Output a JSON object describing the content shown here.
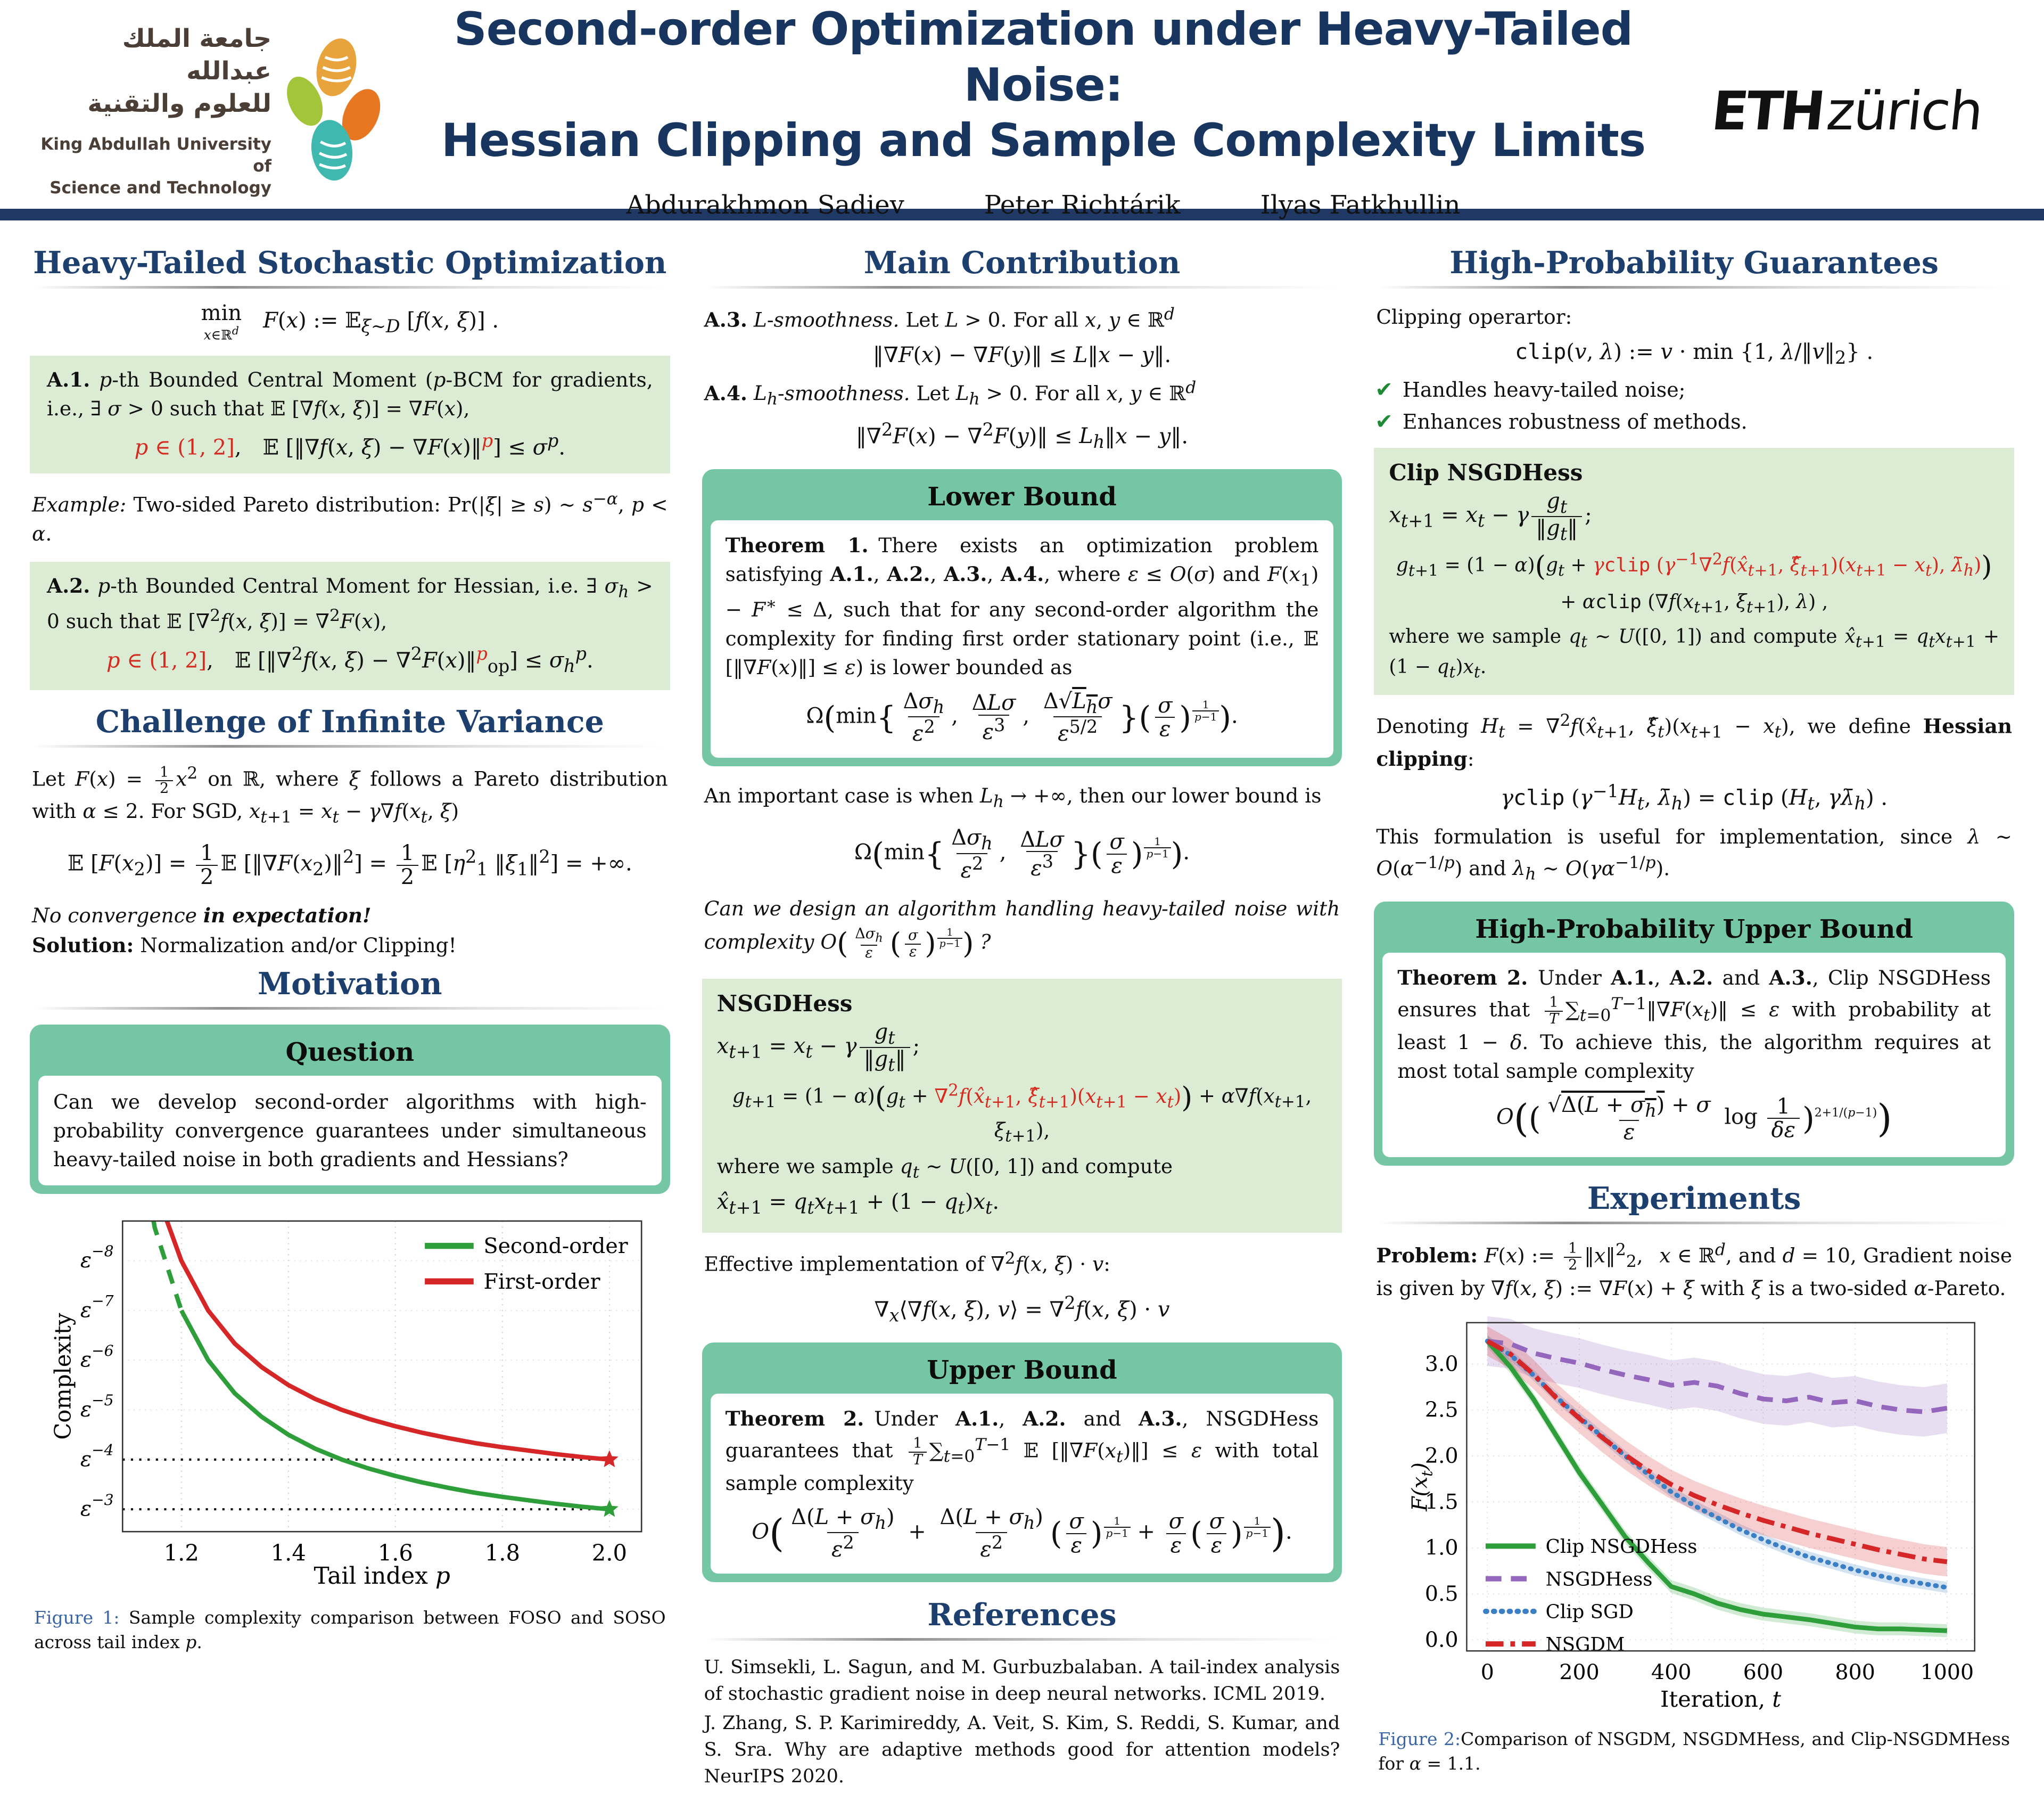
{
  "colors": {
    "navy": "#1f3864",
    "heading": "#1c3f6e",
    "teal": "#74c6a4",
    "sage": "#dcecd4",
    "red_accent": "#d42a20",
    "check_green": "#1d8a34",
    "figure_label_blue": "#3a66a6"
  },
  "header": {
    "title_line1": "Second-order Optimization under Heavy-Tailed Noise:",
    "title_line2": "Hessian Clipping and Sample Complexity Limits",
    "authors": [
      "Abdurakhmon Sadiev",
      "Peter Richtárik",
      "Ilyas Fatkhullin"
    ],
    "kaust_arabic1": "جامعة الملك عبدالله",
    "kaust_arabic2": "للعلوم والتقنية",
    "kaust_en1": "King Abdullah University of",
    "kaust_en2": "Science and Technology",
    "eth_bold": "ETH",
    "eth_light": "zürich"
  },
  "left": {
    "section1_title": "Heavy-Tailed Stochastic Optimization",
    "min_formula": "<span class='stack'><span>min</span><span class='us'><i>x</i>∈ℝ<sup><i>d</i></sup></span></span>&emsp;<i>F</i>(<i>x</i>) := 𝔼<sub><i>ξ</i>∼<i>D</i></sub> [<i>f</i>(<i>x</i>, <i>ξ</i>)] .",
    "a1_text": "<b>A.1.</b> <i>p</i>-th Bounded Central Moment (<i>p</i>-BCM for gradients, i.e., ∃ <i>σ</i> &gt; 0 such that 𝔼 [∇<i>f</i>(<i>x</i>, <i>ξ</i>)] = ∇<i>F</i>(<i>x</i>),",
    "a1_formula": "<span class='r'><i>p</i> ∈ (1, 2]</span>,&emsp;𝔼 [‖∇<i>f</i>(<i>x</i>, <i>ξ</i>) − ∇<i>F</i>(<i>x</i>)‖<sup><span class='r'><i>p</i></span></sup>] ≤ <i>σ</i><sup><i>p</i></sup>.",
    "example": "<i>Example:</i> Two-sided Pareto distribution: Pr(|<i>ξ</i>| ≥ <i>s</i>) ∼ <i>s</i><sup>−<i>α</i></sup>, <i>p</i> &lt; <i>α</i>.",
    "a2_text": "<b>A.2.</b> <i>p</i>-th Bounded Central Moment for Hessian, i.e. ∃ <i>σ<sub>h</sub></i> &gt; 0 such that 𝔼 [∇<sup>2</sup><i>f</i>(<i>x</i>, <i>ξ</i>)] = ∇<sup>2</sup><i>F</i>(<i>x</i>),",
    "a2_formula": "<span class='r'><i>p</i> ∈ (1, 2]</span>,&emsp;𝔼 [‖∇<sup>2</sup><i>f</i>(<i>x</i>, <i>ξ</i>) − ∇<sup>2</sup><i>F</i>(<i>x</i>)‖<sup><span class='r'><i>p</i></span></sup><sub>op</sub>] ≤ <i>σ<sub>h</sub></i><sup><i>p</i></sup>.",
    "section2_title": "Challenge of Infinite Variance",
    "challenge_text": "Let <i>F</i>(<i>x</i>) = <span class='fr sm'><span class='n'>1</span><span class='d'>2</span></span><i>x</i><sup>2</sup> on ℝ, where <i>ξ</i> follows a Pareto distribution with <i>α</i> ≤ 2. For SGD, <i>x</i><sub><i>t</i>+1</sub> = <i>x<sub>t</sub></i> − <i>γ</i>∇<i>f</i>(<i>x<sub>t</sub></i>, <i>ξ</i>)",
    "challenge_formula": "𝔼 [<i>F</i>(<i>x</i><sub>2</sub>)] = <span class='fr'><span class='n'>1</span><span class='d'>2</span></span>𝔼 [‖∇<i>F</i>(<i>x</i><sub>2</sub>)‖<sup>2</sup>] = <span class='fr'><span class='n'>1</span><span class='d'>2</span></span>𝔼 [<i>η</i><sup>2</sup><sub>1</sub> ‖<i>ξ</i><sub>1</sub>‖<sup>2</sup>] = +∞.",
    "no_convergence": "<i>No convergence <b>in expectation!</b></i>",
    "solution": "<b>Solution:</b> Normalization and/or Clipping!",
    "section3_title": "Motivation",
    "question_title": "Question",
    "question_body": "Can we develop second-order algorithms with high-probability convergence guarantees under simultaneous heavy-tailed noise in both gradients and Hessians?",
    "fig1_caption_label": "Figure 1:",
    "fig1_caption": " Sample complexity comparison between FOSO and SOSO across tail index <i>p</i>."
  },
  "middle": {
    "title": "Main Contribution",
    "a3_text": "<b>A.3.</b> <i>L</i>-<i>smoothness.</i> Let <i>L</i> &gt; 0. For all <i>x</i>, <i>y</i> ∈ ℝ<sup><i>d</i></sup>",
    "a3_formula": "‖∇<i>F</i>(<i>x</i>) − ∇<i>F</i>(<i>y</i>)‖ ≤ <i>L</i>‖<i>x</i> − <i>y</i>‖.",
    "a4_text": "<b>A.4.</b> <i>L<sub>h</sub></i>-<i>smoothness.</i> Let <i>L<sub>h</sub></i> &gt; 0. For all <i>x</i>, <i>y</i> ∈ ℝ<sup><i>d</i></sup>",
    "a4_formula": "‖∇<sup>2</sup><i>F</i>(<i>x</i>) − ∇<sup>2</sup><i>F</i>(<i>y</i>)‖ ≤ <i>L<sub>h</sub></i>‖<i>x</i> − <i>y</i>‖.",
    "lower_bound_title": "Lower Bound",
    "thm1_text": "<b>Theorem 1.</b>&ensp;There exists an optimization problem satisfying <b>A.1.</b>, <b>A.2.</b>, <b>A.3.</b>, <b>A.4.</b>, where <i>ε</i> ≤ <i>O</i>(<i>σ</i>) and <i>F</i>(<i>x</i><sub>1</sub>) − <i>F</i><sup>∗</sup> ≤ Δ, such that for any second-order algorithm the complexity for finding first order stationary point (i.e., 𝔼 [‖∇<i>F</i>(<i>x</i>)‖] ≤ <i>ε</i>) is lower bounded as",
    "thm1_formula": "Ω<span class='big'>(</span>min<span class='big'>{</span><span class='fr'><span class='n'>Δ<i>σ<sub>h</sub></i></span><span class='d'><i>ε</i><sup>2</sup></span></span>,&nbsp;<span class='fr'><span class='n'>Δ<i>Lσ</i></span><span class='d'><i>ε</i><sup>3</sup></span></span>,&nbsp;<span class='fr'><span class='n'>Δ√<span class='ov'><i>L<sub>h</sub></i></span><i>σ</i></span><span class='d'><i>ε</i><sup>5/2</sup></span></span><span class='big'>}</span><span class='big'>(</span><span class='fr'><span class='n'><i>σ</i></span><span class='d'><i>ε</i></span></span><span class='big'>)</span><span class='supfr'><span class='n'>1</span><span class='d'><i>p</i>−1</span></span><span class='big'>)</span>.",
    "important_case": "An important case is when <i>L<sub>h</sub></i> → +∞, then our lower bound is",
    "lb2_formula": "Ω<span class='big'>(</span>min<span class='big'>{</span><span class='fr'><span class='n'>Δ<i>σ<sub>h</sub></i></span><span class='d'><i>ε</i><sup>2</sup></span></span>,&nbsp;<span class='fr'><span class='n'>Δ<i>Lσ</i></span><span class='d'><i>ε</i><sup>3</sup></span></span><span class='big'>}</span><span class='big'>(</span><span class='fr'><span class='n'><i>σ</i></span><span class='d'><i>ε</i></span></span><span class='big'>)</span><span class='supfr'><span class='n'>1</span><span class='d'><i>p</i>−1</span></span><span class='big'>)</span>.",
    "design_question": "<i>Can we design an algorithm handling heavy-tailed noise with complexity</i> <i>O</i><span class='big'>(</span><span class='fr sm'><span class='n'>Δ<i>σ<sub>h</sub></i></span><span class='d'><i>ε</i></span></span><span class='big'>(</span><span class='fr sm'><span class='n'><i>σ</i></span><span class='d'><i>ε</i></span></span><span class='big'>)</span><span class='supfr'><span class='n'>1</span><span class='d'><i>p</i>−1</span></span><span class='big'>)</span> <i>?</i>",
    "nsgdhess_title": "NSGDHess",
    "ns1": "<i>x</i><sub><i>t</i>+1</sub> = <i>x<sub>t</sub></i> − <i>γ</i><span class='fr'><span class='n'><i>g<sub>t</sub></i></span><span class='d'>‖<i>g<sub>t</sub></i>‖</span></span>;",
    "ns2": "<i>g</i><sub><i>t</i>+1</sub> = (1 − <i>α</i>)<span class='big'>(</span><i>g<sub>t</sub></i> + <span class='r'>∇<sup>2</sup><i>f</i>(<i>x̂</i><sub><i>t</i>+1</sub>, <i>ξ̂</i><sub><i>t</i>+1</sub>)(<i>x</i><sub><i>t</i>+1</sub> − <i>x<sub>t</sub></i>)</span><span class='big'>)</span> + <i>α</i>∇<i>f</i>(<i>x</i><sub><i>t</i>+1</sub>, <i>ξ</i><sub><i>t</i>+1</sub>),",
    "ns3": "where we sample <i>q<sub>t</sub></i> ∼ <i>U</i>([0, 1]) and compute",
    "ns4": "<i>x̂</i><sub><i>t</i>+1</sub> = <i>q<sub>t</sub></i><i>x</i><sub><i>t</i>+1</sub> + (1 − <i>q<sub>t</sub></i>)<i>x<sub>t</sub></i>.",
    "eff_text": "Effective implementation of ∇<sup>2</sup><i>f</i>(<i>x</i>, <i>ξ</i>) · <i>v</i>:",
    "eff_formula": "∇<sub><i>x</i></sub>⟨∇<i>f</i>(<i>x</i>, <i>ξ</i>), <i>v</i>⟩ = ∇<sup>2</sup><i>f</i>(<i>x</i>, <i>ξ</i>) · <i>v</i>",
    "upper_bound_title": "Upper Bound",
    "thm2_text": "<b>Theorem 2.</b>&ensp;Under <b>A.1.</b>, <b>A.2.</b> and <b>A.3.</b>, NSGDHess guarantees that <span class='fr sm'><span class='n'>1</span><span class='d'><i>T</i></span></span>∑<sub><i>t</i>=0</sub><sup><i>T</i>−1</sup> 𝔼 [‖∇<i>F</i>(<i>x<sub>t</sub></i>)‖] ≤ <i>ε</i> with total sample complexity",
    "thm2_formula": "<i>O</i><span class='big2'>(</span><span class='fr'><span class='n'>Δ(<i>L</i> + <i>σ<sub>h</sub></i>)</span><span class='d'><i>ε</i><sup>2</sup></span></span> + <span class='fr'><span class='n'>Δ(<i>L</i> + <i>σ<sub>h</sub></i>)</span><span class='d'><i>ε</i><sup>2</sup></span></span><span class='big'>(</span><span class='fr'><span class='n'><i>σ</i></span><span class='d'><i>ε</i></span></span><span class='big'>)</span><span class='supfr'><span class='n'>1</span><span class='d'><i>p</i>−1</span></span> + <span class='fr'><span class='n'><i>σ</i></span><span class='d'><i>ε</i></span></span><span class='big'>(</span><span class='fr'><span class='n'><i>σ</i></span><span class='d'><i>ε</i></span></span><span class='big'>)</span><span class='supfr'><span class='n'>1</span><span class='d'><i>p</i>−1</span></span><span class='big2'>)</span>.",
    "references_title": "References",
    "ref1": "U. Simsekli, L. Sagun, and M. Gurbuzbalaban. A tail-index analysis of stochastic gradient noise in deep neural networks. ICML 2019.",
    "ref2": "J. Zhang, S. P. Karimireddy, A. Veit, S. Kim, S. Reddi, S. Kumar, and S. Sra. Why are adaptive methods good for attention models? NeurIPS 2020."
  },
  "right": {
    "title": "High-Probability Guarantees",
    "clipping_label": "Clipping operartor:",
    "clip_formula": "<span class='mono'>clip</span>(<i>v</i>, <i>λ</i>) := <i>v</i> · min {1, <i>λ</i>/‖<i>v</i>‖<sub>2</sub>} .",
    "check1": "Handles heavy-tailed noise;",
    "check2": "Enhances robustness of methods.",
    "clip_box_title": "Clip NSGDHess",
    "cb1": "<i>x</i><sub><i>t</i>+1</sub> = <i>x<sub>t</sub></i> − <i>γ</i><span class='fr'><span class='n'><i>g<sub>t</sub></i></span><span class='d'>‖<i>g<sub>t</sub></i>‖</span></span>;",
    "cb2": "<i>g</i><sub><i>t</i>+1</sub> = (1 − <i>α</i>)<span class='big'>(</span><i>g<sub>t</sub></i> + <span class='r'><i>γ</i><span class='mono'>clip</span> (<i>γ</i><sup>−1</sup>∇<sup>2</sup><i>f</i>(<i>x̂</i><sub><i>t</i>+1</sub>, <i>ξ̂</i><sub><i>t</i>+1</sub>)(<i>x</i><sub><i>t</i>+1</sub> − <i>x<sub>t</sub></i>), <i>λ̄<sub>h</sub></i>)</span><span class='big'>)</span>",
    "cb3": "+ <i>α</i><span class='mono'>clip</span> (∇<i>f</i>(<i>x</i><sub><i>t</i>+1</sub>, <i>ξ</i><sub><i>t</i>+1</sub>), <i>λ</i>) ,",
    "cb4": "where we sample <i>q<sub>t</sub></i> ∼ <i>U</i>([0, 1]) and compute <i>x̂</i><sub><i>t</i>+1</sub> = <i>q<sub>t</sub></i><i>x</i><sub><i>t</i>+1</sub> + (1 − <i>q<sub>t</sub></i>)<i>x<sub>t</sub></i>.",
    "denoting": "Denoting <i>H<sub>t</sub></i> = ∇<sup>2</sup><i>f</i>(<i>x̂</i><sub><i>t</i>+1</sub>, <i>ξ̂<sub>t</sub></i>)(<i>x</i><sub><i>t</i>+1</sub> − <i>x<sub>t</sub></i>), we define <b>Hessian clipping</b>:",
    "hessclip_formula": "<i>γ</i><span class='mono'>clip</span> (<i>γ</i><sup>−1</sup><i>H<sub>t</sub></i>, <i>λ̄<sub>h</sub></i>) = <span class='mono'>clip</span> (<i>H<sub>t</sub></i>, <i>γλ̄<sub>h</sub></i>) .",
    "useful": "This formulation is useful for implementation, since <i>λ</i> ∼ <i>O</i>(<i>α</i><sup>−1/<i>p</i></sup>) and <i>λ<sub>h</sub></i> ∼ <i>O</i>(<i>γα</i><sup>−1/<i>p</i></sup>).",
    "hpub_title": "High-Probability Upper Bound",
    "thm2b_text": "<b>Theorem 2.</b>&ensp;Under <b>A.1.</b>, <b>A.2.</b> and <b>A.3.</b>, Clip NSGDHess ensures that <span class='fr sm'><span class='n'>1</span><span class='d'><i>T</i></span></span>∑<sub><i>t</i>=0</sub><sup><i>T</i>−1</sup>‖∇<i>F</i>(<i>x<sub>t</sub></i>)‖ ≤ <i>ε</i> with probability at least 1 − <i>δ</i>. To achieve this, the algorithm requires at most total sample complexity",
    "thm2b_formula": "<i>O</i><span class='big2'>(</span><span class='big'>(</span><span class='fr'><span class='n'>√<span class='ov'>Δ(<i>L</i> + <i>σ<sub>h</sub></i>)</span> + <i>σ</i></span><span class='d'><i>ε</i></span></span> log <span class='fr'><span class='n'>1</span><span class='d'><i>δε</i></span></span><span class='big'>)</span><sup class='ex'>2+1/(<i>p</i>−1)</sup><span class='big2'>)</span>",
    "experiments_title": "Experiments",
    "problem": "<b>Problem:</b> <i>F</i>(<i>x</i>) := <span class='fr sm'><span class='n'>1</span><span class='d'>2</span></span>‖<i>x</i>‖<sup>2</sup><sub>2</sub>, &ensp;<i>x</i> ∈ ℝ<sup><i>d</i></sup>, and <i>d</i> = 10, Gradient noise is given by ∇<i>f</i>(<i>x</i>, <i>ξ</i>) := ∇<i>F</i>(<i>x</i>) + <i>ξ</i> with <i>ξ</i> is a two-sided <i>α</i>-Pareto.",
    "fig2_caption_label": "Figure 2:",
    "fig2_caption": "Comparison of NSGDM, NSGDMHess, and Clip-NSGDMHess for <i>α</i> = 1.1."
  },
  "chart_data": [
    {
      "id": "figure-1",
      "type": "line",
      "title": "Sample complexity comparison between FOSO and SOSO",
      "xlabel": "Tail index p",
      "ylabel": "Complexity",
      "x_ticks": [
        1.2,
        1.4,
        1.6,
        1.8,
        2.0
      ],
      "y_ticks_exponents": [
        3,
        4,
        5,
        6,
        7,
        8
      ],
      "y_tick_label_base": "ε",
      "xlim": [
        1.09,
        2.06
      ],
      "elim": [
        2.55,
        8.8
      ],
      "grid": true,
      "legend_position": "top-right",
      "hlines_exponents": [
        4,
        3
      ],
      "stars": [
        {
          "p": 2.0,
          "exp": 4,
          "color": "#d62728"
        },
        {
          "p": 2.0,
          "exp": 3,
          "color": "#2e9e3a"
        }
      ],
      "series": [
        {
          "name": "Second-order",
          "color": "#2e9e3a",
          "style": "solid",
          "dashed_head_until_p": 1.24,
          "p": [
            1.148,
            1.15,
            1.2,
            1.25,
            1.3,
            1.35,
            1.4,
            1.45,
            1.5,
            1.55,
            1.6,
            1.65,
            1.7,
            1.75,
            1.8,
            1.85,
            1.9,
            1.95,
            2.0
          ],
          "exponent": [
            8.8,
            8.67,
            7.0,
            6.0,
            5.33,
            4.86,
            4.5,
            4.22,
            4.0,
            3.82,
            3.67,
            3.54,
            3.43,
            3.33,
            3.25,
            3.18,
            3.11,
            3.05,
            3.0
          ]
        },
        {
          "name": "First-order",
          "color": "#d62728",
          "style": "solid",
          "dashed_head_until_p": null,
          "p": [
            1.173,
            1.2,
            1.25,
            1.3,
            1.35,
            1.4,
            1.45,
            1.5,
            1.55,
            1.6,
            1.65,
            1.7,
            1.75,
            1.8,
            1.85,
            1.9,
            1.95,
            2.0
          ],
          "exponent": [
            8.8,
            8.0,
            7.0,
            6.33,
            5.86,
            5.5,
            5.22,
            5.0,
            4.82,
            4.67,
            4.54,
            4.43,
            4.33,
            4.25,
            4.18,
            4.11,
            4.05,
            4.0
          ]
        }
      ]
    },
    {
      "id": "figure-2",
      "type": "line",
      "title": "Comparison of NSGDM, NSGDMHess, and Clip-NSGDMHess for alpha = 1.1",
      "xlabel": "Iteration, t",
      "ylabel": "F(x_t)",
      "x_ticks": [
        0,
        200,
        400,
        600,
        800,
        1000
      ],
      "y_ticks": [
        0.0,
        0.5,
        1.0,
        1.5,
        2.0,
        2.5,
        3.0
      ],
      "xlim": [
        -45,
        1060
      ],
      "ylim": [
        -0.12,
        3.45
      ],
      "grid": true,
      "legend_position": "bottom-left",
      "x": [
        0,
        50,
        100,
        150,
        200,
        250,
        300,
        350,
        400,
        450,
        500,
        550,
        600,
        650,
        700,
        750,
        800,
        850,
        900,
        950,
        1000
      ],
      "series": [
        {
          "name": "Clip NSGDHess",
          "color": "#2e9e3a",
          "style": "solid",
          "band": 0.07,
          "values": [
            3.25,
            2.97,
            2.62,
            2.22,
            1.82,
            1.47,
            1.12,
            0.84,
            0.58,
            0.5,
            0.4,
            0.33,
            0.28,
            0.25,
            0.22,
            0.18,
            0.14,
            0.12,
            0.12,
            0.11,
            0.1
          ]
        },
        {
          "name": "NSGDHess",
          "color": "#9467bd",
          "style": "dashed",
          "band": 0.27,
          "values": [
            3.25,
            3.22,
            3.12,
            3.06,
            3.01,
            2.94,
            2.88,
            2.83,
            2.77,
            2.8,
            2.76,
            2.68,
            2.62,
            2.6,
            2.64,
            2.58,
            2.6,
            2.54,
            2.5,
            2.48,
            2.52
          ]
        },
        {
          "name": "Clip SGD",
          "color": "#3b7fc4",
          "style": "dotted",
          "band": 0.06,
          "values": [
            3.25,
            3.1,
            2.88,
            2.64,
            2.42,
            2.21,
            2.0,
            1.8,
            1.61,
            1.46,
            1.33,
            1.2,
            1.09,
            0.99,
            0.9,
            0.83,
            0.76,
            0.7,
            0.65,
            0.61,
            0.57
          ]
        },
        {
          "name": "NSGDM",
          "color": "#d62728",
          "style": "dashdot",
          "band": 0.16,
          "values": [
            3.25,
            3.11,
            2.89,
            2.63,
            2.41,
            2.2,
            2.01,
            1.84,
            1.69,
            1.57,
            1.47,
            1.38,
            1.3,
            1.23,
            1.16,
            1.1,
            1.04,
            0.98,
            0.93,
            0.88,
            0.85
          ]
        }
      ]
    }
  ]
}
